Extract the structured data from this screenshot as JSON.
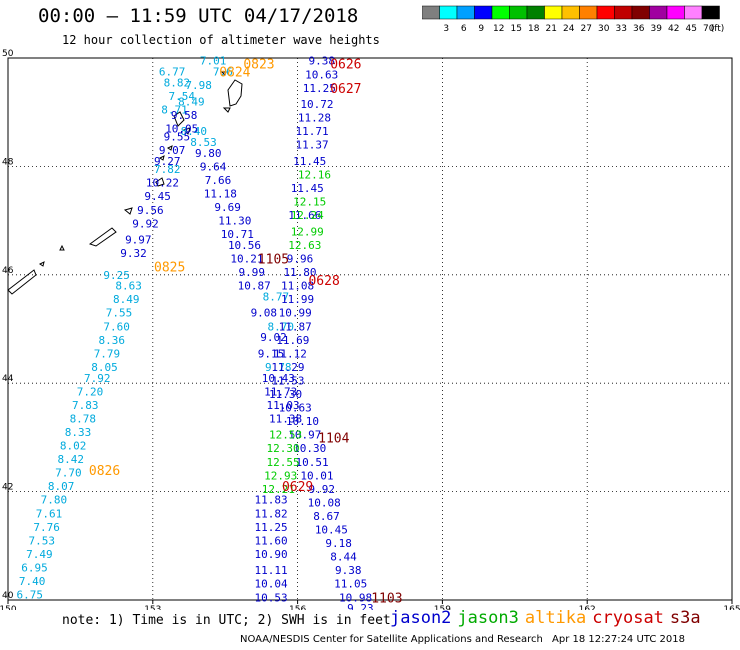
{
  "title": "00:00 – 11:59 UTC 04/17/2018",
  "subtitle": "12 hour collection of altimeter wave heights",
  "colorbar": {
    "labels": [
      "3",
      "6",
      "9",
      "12",
      "15",
      "18",
      "21",
      "24",
      "27",
      "30",
      "33",
      "36",
      "39",
      "42",
      "45",
      "70"
    ],
    "unit": "(ft)",
    "colors": [
      "#7f7f7f",
      "#00ffff",
      "#00a0ff",
      "#0000ff",
      "#00ff00",
      "#00c000",
      "#008000",
      "#ffff00",
      "#ffc000",
      "#ff8000",
      "#ff0000",
      "#c00000",
      "#800000",
      "#a000a0",
      "#ff00ff",
      "#ff80ff",
      "#000000"
    ]
  },
  "note": "note: 1) Time is in UTC; 2) SWH is in feet",
  "legend": [
    {
      "name": "jason2",
      "color": "#0000cc"
    },
    {
      "name": "jason3",
      "color": "#00aa00"
    },
    {
      "name": "altika",
      "color": "#ff9900"
    },
    {
      "name": "cryosat",
      "color": "#cc0000"
    },
    {
      "name": "s3a",
      "color": "#800000"
    }
  ],
  "footer_left": "NOAA/NESDIS Center for Satellite Applications and Research",
  "footer_right": "Apr 18 12:27:24 UTC 2018",
  "chart_data": {
    "type": "scatter",
    "xlim": [
      150,
      165
    ],
    "ylim": [
      40,
      50
    ],
    "x_ticks": [
      "150",
      "153",
      "156",
      "159",
      "162",
      "165"
    ],
    "y_ticks": [
      "40",
      "42",
      "44",
      "46",
      "48",
      "50"
    ],
    "grid": true,
    "colors": {
      "jason2": "#0000cc",
      "jason3": "#00cc00",
      "altika": "#00aadd",
      "cryosat": "#cc0000",
      "s3a": "#800000",
      "altika_label": "#ff9900"
    },
    "time_labels": [
      {
        "text": "0823",
        "x": 155.2,
        "y": 49.9,
        "sat": "altika"
      },
      {
        "text": "0824",
        "x": 154.7,
        "y": 49.75,
        "sat": "altika"
      },
      {
        "text": "0825",
        "x": 153.35,
        "y": 46.15,
        "sat": "altika"
      },
      {
        "text": "0826",
        "x": 152.0,
        "y": 42.4,
        "sat": "altika"
      },
      {
        "text": "0626",
        "x": 157.0,
        "y": 49.9,
        "sat": "cryosat"
      },
      {
        "text": "0627",
        "x": 157.0,
        "y": 49.45,
        "sat": "cryosat"
      },
      {
        "text": "0628",
        "x": 156.55,
        "y": 45.9,
        "sat": "cryosat"
      },
      {
        "text": "0629",
        "x": 156.0,
        "y": 42.1,
        "sat": "cryosat"
      },
      {
        "text": "1105",
        "x": 155.5,
        "y": 46.3,
        "sat": "s3a"
      },
      {
        "text": "1104",
        "x": 156.75,
        "y": 43.0,
        "sat": "s3a"
      },
      {
        "text": "1103",
        "x": 157.85,
        "y": 40.05,
        "sat": "s3a"
      }
    ],
    "series": [
      {
        "name": "altika",
        "points": [
          {
            "x": 154.25,
            "y": 49.95,
            "v": "7.01"
          },
          {
            "x": 153.4,
            "y": 49.75,
            "v": "6.77"
          },
          {
            "x": 154.45,
            "y": 49.75,
            "v": "7.6"
          },
          {
            "x": 153.5,
            "y": 49.55,
            "v": "8.82"
          },
          {
            "x": 153.95,
            "y": 49.5,
            "v": "7.98"
          },
          {
            "x": 153.6,
            "y": 49.3,
            "v": "7.54"
          },
          {
            "x": 153.8,
            "y": 49.2,
            "v": "8.49"
          },
          {
            "x": 153.45,
            "y": 49.05,
            "v": "8.71"
          },
          {
            "x": 153.85,
            "y": 48.65,
            "v": "8.40"
          },
          {
            "x": 154.05,
            "y": 48.45,
            "v": "8.53"
          },
          {
            "x": 153.3,
            "y": 47.95,
            "v": "7.82"
          },
          {
            "x": 152.25,
            "y": 46.0,
            "v": "9.25"
          },
          {
            "x": 152.5,
            "y": 45.8,
            "v": "8.63"
          },
          {
            "x": 152.45,
            "y": 45.55,
            "v": "8.49"
          },
          {
            "x": 152.3,
            "y": 45.3,
            "v": "7.55"
          },
          {
            "x": 152.25,
            "y": 45.05,
            "v": "7.60"
          },
          {
            "x": 152.15,
            "y": 44.8,
            "v": "8.36"
          },
          {
            "x": 152.05,
            "y": 44.55,
            "v": "7.79"
          },
          {
            "x": 152.0,
            "y": 44.3,
            "v": "8.05"
          },
          {
            "x": 151.85,
            "y": 44.1,
            "v": "7.92"
          },
          {
            "x": 151.7,
            "y": 43.85,
            "v": "7.20"
          },
          {
            "x": 151.6,
            "y": 43.6,
            "v": "7.83"
          },
          {
            "x": 151.55,
            "y": 43.35,
            "v": "8.78"
          },
          {
            "x": 151.45,
            "y": 43.1,
            "v": "8.33"
          },
          {
            "x": 151.35,
            "y": 42.85,
            "v": "8.02"
          },
          {
            "x": 151.3,
            "y": 42.6,
            "v": "8.42"
          },
          {
            "x": 151.25,
            "y": 42.35,
            "v": "7.70"
          },
          {
            "x": 151.1,
            "y": 42.1,
            "v": "8.07"
          },
          {
            "x": 150.95,
            "y": 41.85,
            "v": "7.80"
          },
          {
            "x": 150.85,
            "y": 41.6,
            "v": "7.61"
          },
          {
            "x": 150.8,
            "y": 41.35,
            "v": "7.76"
          },
          {
            "x": 150.7,
            "y": 41.1,
            "v": "7.53"
          },
          {
            "x": 150.65,
            "y": 40.85,
            "v": "7.49"
          },
          {
            "x": 150.55,
            "y": 40.6,
            "v": "6.95"
          },
          {
            "x": 150.5,
            "y": 40.35,
            "v": "7.40"
          },
          {
            "x": 150.45,
            "y": 40.1,
            "v": "6.75"
          },
          {
            "x": 155.55,
            "y": 45.6,
            "v": "8.77"
          },
          {
            "x": 155.65,
            "y": 45.05,
            "v": "8.70"
          },
          {
            "x": 155.6,
            "y": 44.3,
            "v": "9.78"
          }
        ]
      },
      {
        "name": "jason2",
        "points": [
          {
            "x": 153.65,
            "y": 48.95,
            "v": "9.58"
          },
          {
            "x": 153.6,
            "y": 48.7,
            "v": "10.05"
          },
          {
            "x": 153.5,
            "y": 48.55,
            "v": "9.55"
          },
          {
            "x": 153.4,
            "y": 48.3,
            "v": "9.07"
          },
          {
            "x": 153.3,
            "y": 48.1,
            "v": "9.27"
          },
          {
            "x": 154.15,
            "y": 48.25,
            "v": "9.80"
          },
          {
            "x": 154.25,
            "y": 48.0,
            "v": "9.64"
          },
          {
            "x": 154.35,
            "y": 47.75,
            "v": "7.66"
          },
          {
            "x": 154.4,
            "y": 47.5,
            "v": "11.18"
          },
          {
            "x": 154.55,
            "y": 47.25,
            "v": "9.69"
          },
          {
            "x": 154.7,
            "y": 47.0,
            "v": "11.30"
          },
          {
            "x": 154.75,
            "y": 46.75,
            "v": "10.71"
          },
          {
            "x": 154.9,
            "y": 46.55,
            "v": "10.56"
          },
          {
            "x": 154.95,
            "y": 46.3,
            "v": "10.21"
          },
          {
            "x": 155.05,
            "y": 46.05,
            "v": "9.99"
          },
          {
            "x": 155.1,
            "y": 45.8,
            "v": "10.87"
          },
          {
            "x": 155.3,
            "y": 45.3,
            "v": "9.08"
          },
          {
            "x": 155.5,
            "y": 44.85,
            "v": "9.02"
          },
          {
            "x": 155.45,
            "y": 44.55,
            "v": "9.15"
          },
          {
            "x": 155.6,
            "y": 44.1,
            "v": "10.43"
          },
          {
            "x": 155.65,
            "y": 43.85,
            "v": "11.73"
          },
          {
            "x": 155.7,
            "y": 43.6,
            "v": "11.03"
          },
          {
            "x": 155.75,
            "y": 43.35,
            "v": "11.38"
          },
          {
            "x": 153.2,
            "y": 47.7,
            "v": "10.22"
          },
          {
            "x": 153.1,
            "y": 47.45,
            "v": "9.45"
          },
          {
            "x": 152.95,
            "y": 47.2,
            "v": "9.56"
          },
          {
            "x": 152.85,
            "y": 46.95,
            "v": "9.92"
          },
          {
            "x": 152.7,
            "y": 46.65,
            "v": "9.97"
          },
          {
            "x": 152.6,
            "y": 46.4,
            "v": "9.32"
          },
          {
            "x": 156.5,
            "y": 49.95,
            "v": "9.38"
          },
          {
            "x": 156.5,
            "y": 49.7,
            "v": "10.63"
          },
          {
            "x": 156.45,
            "y": 49.45,
            "v": "11.25"
          },
          {
            "x": 156.4,
            "y": 49.15,
            "v": "10.72"
          },
          {
            "x": 156.35,
            "y": 48.9,
            "v": "11.28"
          },
          {
            "x": 156.3,
            "y": 48.65,
            "v": "11.71"
          },
          {
            "x": 156.3,
            "y": 48.4,
            "v": "11.37"
          },
          {
            "x": 156.25,
            "y": 48.1,
            "v": "11.45"
          },
          {
            "x": 156.2,
            "y": 47.6,
            "v": "11.45"
          },
          {
            "x": 156.15,
            "y": 47.1,
            "v": "11.66"
          },
          {
            "x": 156.05,
            "y": 46.3,
            "v": "9.96"
          },
          {
            "x": 156.05,
            "y": 46.05,
            "v": "11.80"
          },
          {
            "x": 156.0,
            "y": 45.8,
            "v": "11.08"
          },
          {
            "x": 156.0,
            "y": 45.55,
            "v": "11.99"
          },
          {
            "x": 155.95,
            "y": 45.3,
            "v": "10.99"
          },
          {
            "x": 155.95,
            "y": 45.05,
            "v": "11.87"
          },
          {
            "x": 155.9,
            "y": 44.8,
            "v": "11.69"
          },
          {
            "x": 155.85,
            "y": 44.55,
            "v": "11.12"
          },
          {
            "x": 155.8,
            "y": 44.3,
            "v": "11.29"
          },
          {
            "x": 155.8,
            "y": 44.05,
            "v": "11.53"
          },
          {
            "x": 155.75,
            "y": 43.8,
            "v": "11.30"
          },
          {
            "x": 155.95,
            "y": 43.55,
            "v": "10.63"
          },
          {
            "x": 156.1,
            "y": 43.3,
            "v": "10.10"
          },
          {
            "x": 156.15,
            "y": 43.05,
            "v": "10.97"
          },
          {
            "x": 156.25,
            "y": 42.8,
            "v": "10.30"
          },
          {
            "x": 156.3,
            "y": 42.55,
            "v": "10.51"
          },
          {
            "x": 156.4,
            "y": 42.3,
            "v": "10.01"
          },
          {
            "x": 156.5,
            "y": 42.05,
            "v": "9.92"
          },
          {
            "x": 156.55,
            "y": 41.8,
            "v": "10.08"
          },
          {
            "x": 156.6,
            "y": 41.55,
            "v": "8.67"
          },
          {
            "x": 156.7,
            "y": 41.3,
            "v": "10.45"
          },
          {
            "x": 156.85,
            "y": 41.05,
            "v": "9.18"
          },
          {
            "x": 156.95,
            "y": 40.8,
            "v": "8.44"
          },
          {
            "x": 157.05,
            "y": 40.55,
            "v": "9.38"
          },
          {
            "x": 157.1,
            "y": 40.3,
            "v": "11.05"
          },
          {
            "x": 157.2,
            "y": 40.05,
            "v": "10.98"
          },
          {
            "x": 157.3,
            "y": 39.85,
            "v": "9.23"
          },
          {
            "x": 155.45,
            "y": 41.85,
            "v": "11.83"
          },
          {
            "x": 155.45,
            "y": 41.6,
            "v": "11.82"
          },
          {
            "x": 155.45,
            "y": 41.35,
            "v": "11.25"
          },
          {
            "x": 155.45,
            "y": 41.1,
            "v": "11.60"
          },
          {
            "x": 155.45,
            "y": 40.85,
            "v": "10.90"
          },
          {
            "x": 155.45,
            "y": 40.55,
            "v": "11.11"
          },
          {
            "x": 155.45,
            "y": 40.3,
            "v": "10.04"
          },
          {
            "x": 155.45,
            "y": 40.05,
            "v": "10.53"
          }
        ]
      },
      {
        "name": "jason3",
        "points": [
          {
            "x": 156.35,
            "y": 47.85,
            "v": "12.16"
          },
          {
            "x": 156.25,
            "y": 47.35,
            "v": "12.15"
          },
          {
            "x": 156.2,
            "y": 47.1,
            "v": "12.24"
          },
          {
            "x": 156.2,
            "y": 46.8,
            "v": "12.99"
          },
          {
            "x": 156.15,
            "y": 46.55,
            "v": "12.63"
          },
          {
            "x": 155.75,
            "y": 43.05,
            "v": "12.53"
          },
          {
            "x": 155.7,
            "y": 42.8,
            "v": "12.30"
          },
          {
            "x": 155.7,
            "y": 42.55,
            "v": "12.55"
          },
          {
            "x": 155.65,
            "y": 42.3,
            "v": "12.93"
          },
          {
            "x": 155.6,
            "y": 42.05,
            "v": "12.21"
          }
        ]
      }
    ]
  }
}
